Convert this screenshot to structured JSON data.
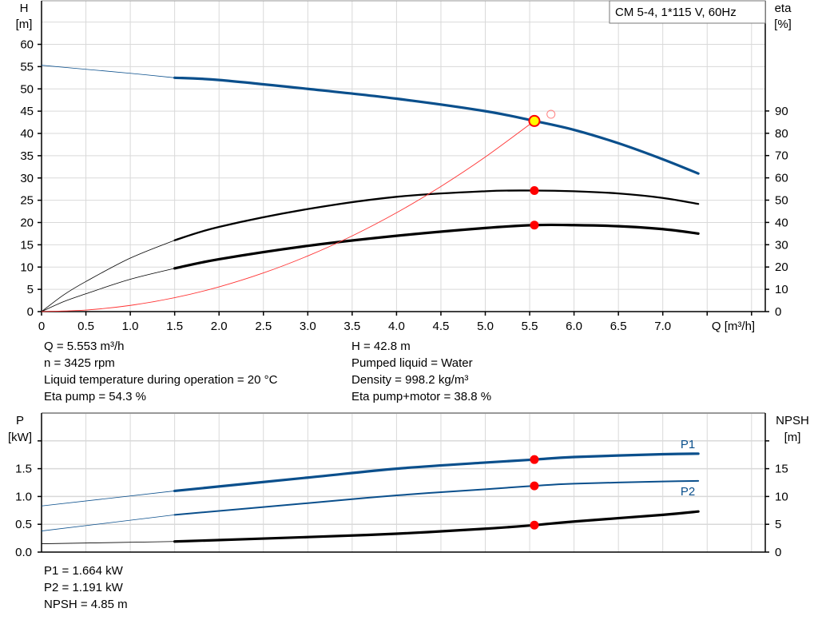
{
  "legend_box": "CM 5-4, 1*115 V, 60Hz",
  "colors": {
    "head": "#0a4f8c",
    "power": "#0a4f8c",
    "eta": "#000000",
    "system": "#ff3333",
    "duty_point": "#ff0000",
    "duty_fill_top": "#ffff00",
    "grid": "#d9d9d9"
  },
  "chart_data": [
    {
      "type": "line",
      "title": "",
      "x_axis": {
        "label": "Q [m³/h]",
        "range": [
          0,
          8
        ],
        "ticks": [
          "0",
          "0.5",
          "1.0",
          "1.5",
          "2.0",
          "2.5",
          "3.0",
          "3.5",
          "4.0",
          "4.5",
          "5.0",
          "5.5",
          "6.0",
          "6.5",
          "7.0"
        ]
      },
      "y_axis_left": {
        "label_line1": "H",
        "label_line2": "[m]",
        "range": [
          0,
          70
        ],
        "ticks": [
          "0",
          "5",
          "10",
          "15",
          "20",
          "25",
          "30",
          "35",
          "40",
          "45",
          "50",
          "55",
          "60"
        ]
      },
      "y_axis_right": {
        "label_line1": "eta",
        "label_line2": "[%]",
        "ticks": [
          "0",
          "10",
          "20",
          "30",
          "40",
          "50",
          "60",
          "70",
          "80",
          "90"
        ]
      },
      "grid": true,
      "series": [
        {
          "id": "head",
          "axis": "left",
          "thick_from": 1.5,
          "x": [
            0,
            0.5,
            1.0,
            1.5,
            2.0,
            3.0,
            4.0,
            5.0,
            5.553,
            6.0,
            6.5,
            7.0,
            7.4
          ],
          "y": [
            55.3,
            54.4,
            53.5,
            52.5,
            52.0,
            50.0,
            47.8,
            45.0,
            42.8,
            40.8,
            37.8,
            34.2,
            31.0
          ]
        },
        {
          "id": "eta-pump",
          "axis": "right",
          "thick_from": 1.5,
          "x": [
            0,
            0.25,
            0.5,
            1.0,
            1.5,
            2.0,
            3.0,
            4.0,
            5.0,
            5.553,
            6.0,
            6.5,
            7.0,
            7.4
          ],
          "y": [
            0,
            7.5,
            13.5,
            24,
            32,
            38,
            46,
            51.5,
            54,
            54.3,
            54,
            53,
            51,
            48.3
          ]
        },
        {
          "id": "eta-pump-motor",
          "axis": "right",
          "thick_from": 1.5,
          "x": [
            0,
            0.25,
            0.5,
            1.0,
            1.5,
            2.0,
            3.0,
            4.0,
            5.0,
            5.553,
            6.0,
            6.5,
            7.0,
            7.4
          ],
          "y": [
            0,
            4.5,
            8,
            14.5,
            19.4,
            23.5,
            29.5,
            34,
            37.5,
            38.8,
            38.8,
            38.3,
            37,
            35
          ]
        },
        {
          "id": "system-curve",
          "axis": "left",
          "thin": true,
          "x": [
            0,
            0.5,
            1.0,
            1.5,
            2.0,
            2.5,
            3.0,
            3.5,
            4.0,
            4.5,
            5.0,
            5.553
          ],
          "y": [
            0,
            0.35,
            1.39,
            3.12,
            5.55,
            8.68,
            12.5,
            17.0,
            22.2,
            28.1,
            34.7,
            42.8
          ]
        }
      ],
      "duty_point": {
        "Q": 5.553,
        "H": 42.8,
        "eta_pump": 54.3,
        "eta_pump_motor": 38.8
      },
      "system_end": {
        "Q": 5.65,
        "H": 44.3
      }
    },
    {
      "type": "line",
      "title": "",
      "x_axis": {
        "range": [
          0,
          8
        ]
      },
      "y_axis_left": {
        "label_line1": "P",
        "label_line2": "[kW]",
        "range": [
          0,
          2.5
        ],
        "ticks": [
          "0.0",
          "0.5",
          "1.0",
          "1.5",
          ""
        ]
      },
      "y_axis_right": {
        "label_line1": "NPSH",
        "label_line2": "[m]",
        "range": [
          0,
          25
        ],
        "ticks": [
          "0",
          "5",
          "10",
          "15",
          ""
        ]
      },
      "grid": true,
      "series": [
        {
          "id": "P1",
          "name": "P1",
          "axis": "left",
          "thick_from": 1.5,
          "width": 3.2,
          "x": [
            0,
            1.5,
            3.0,
            4.0,
            5.0,
            5.553,
            6.0,
            7.0,
            7.4
          ],
          "y": [
            0.83,
            1.1,
            1.34,
            1.5,
            1.61,
            1.664,
            1.71,
            1.76,
            1.77
          ]
        },
        {
          "id": "P2",
          "name": "P2",
          "axis": "left",
          "thick_from": 1.5,
          "width": 2,
          "x": [
            0,
            1.5,
            3.0,
            4.0,
            5.0,
            5.553,
            6.0,
            7.0,
            7.4
          ],
          "y": [
            0.38,
            0.67,
            0.88,
            1.02,
            1.13,
            1.191,
            1.23,
            1.27,
            1.28
          ]
        },
        {
          "id": "NPSH",
          "axis": "right",
          "thick_from": 1.5,
          "width": 3.2,
          "x": [
            0,
            1.5,
            3.0,
            4.0,
            5.0,
            5.553,
            6.0,
            7.0,
            7.4
          ],
          "y": [
            1.5,
            1.9,
            2.7,
            3.3,
            4.2,
            4.85,
            5.5,
            6.7,
            7.3
          ]
        }
      ],
      "duty_point": {
        "Q": 5.553,
        "P1": 1.664,
        "P2": 1.191,
        "NPSH": 4.85
      }
    }
  ],
  "info_top": {
    "left": [
      "Q = 5.553 m³/h",
      "n = 3425 rpm",
      "Liquid temperature during operation = 20 °C",
      "Eta pump = 54.3 %"
    ],
    "right": [
      "H = 42.8 m",
      "Pumped liquid = Water",
      "Density = 998.2 kg/m³",
      "Eta pump+motor = 38.8 %"
    ]
  },
  "info_bottom": [
    "P1 = 1.664 kW",
    "P2 = 1.191 kW",
    "NPSH = 4.85 m"
  ]
}
